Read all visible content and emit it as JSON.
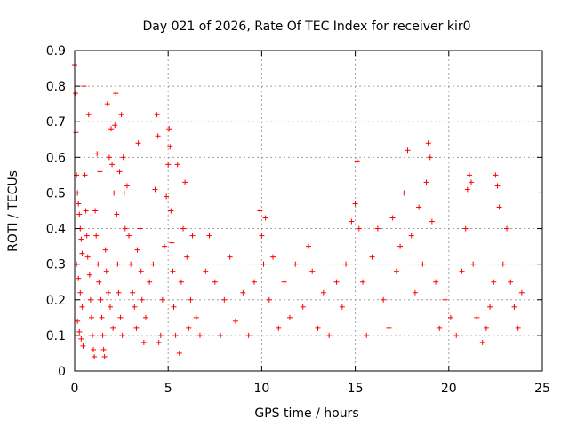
{
  "chart_data": {
    "type": "scatter",
    "title": "Day 021 of 2026, Rate Of TEC Index for receiver kir0",
    "xlabel": "GPS time / hours",
    "ylabel": "ROTI / TECUs",
    "xlim": [
      0,
      25
    ],
    "ylim": [
      0,
      0.9
    ],
    "xticks": [
      0,
      5,
      10,
      15,
      20,
      25
    ],
    "xtick_labels": [
      "0",
      "5",
      "10",
      "15",
      "20",
      "25"
    ],
    "yticks": [
      0,
      0.1,
      0.2,
      0.3,
      0.4,
      0.5,
      0.6,
      0.7,
      0.8,
      0.9
    ],
    "ytick_labels": [
      "0",
      "0.1",
      "0.2",
      "0.3",
      "0.4",
      "0.5",
      "0.6",
      "0.7",
      "0.8",
      "0.9"
    ],
    "grid": true,
    "legend": "none",
    "marker": "plus",
    "color": "#ff0000",
    "series": [
      {
        "points": [
          [
            0.0,
            0.86
          ],
          [
            0.05,
            0.78
          ],
          [
            0.07,
            0.67
          ],
          [
            0.1,
            0.55
          ],
          [
            0.15,
            0.5
          ],
          [
            0.2,
            0.47
          ],
          [
            0.25,
            0.44
          ],
          [
            0.3,
            0.4
          ],
          [
            0.35,
            0.37
          ],
          [
            0.4,
            0.33
          ],
          [
            0.1,
            0.3
          ],
          [
            0.2,
            0.26
          ],
          [
            0.3,
            0.22
          ],
          [
            0.4,
            0.18
          ],
          [
            0.15,
            0.14
          ],
          [
            0.25,
            0.11
          ],
          [
            0.35,
            0.09
          ],
          [
            0.45,
            0.07
          ],
          [
            0.5,
            0.8
          ],
          [
            0.55,
            0.55
          ],
          [
            0.6,
            0.45
          ],
          [
            0.65,
            0.38
          ],
          [
            0.7,
            0.32
          ],
          [
            0.75,
            0.72
          ],
          [
            0.8,
            0.27
          ],
          [
            0.85,
            0.2
          ],
          [
            0.9,
            0.15
          ],
          [
            0.95,
            0.1
          ],
          [
            1.0,
            0.06
          ],
          [
            1.05,
            0.04
          ],
          [
            1.1,
            0.45
          ],
          [
            1.15,
            0.38
          ],
          [
            1.2,
            0.61
          ],
          [
            1.25,
            0.3
          ],
          [
            1.3,
            0.25
          ],
          [
            1.35,
            0.56
          ],
          [
            1.4,
            0.2
          ],
          [
            1.45,
            0.15
          ],
          [
            1.5,
            0.1
          ],
          [
            1.55,
            0.06
          ],
          [
            1.6,
            0.04
          ],
          [
            1.65,
            0.34
          ],
          [
            1.7,
            0.28
          ],
          [
            1.75,
            0.75
          ],
          [
            1.8,
            0.22
          ],
          [
            1.85,
            0.6
          ],
          [
            1.9,
            0.18
          ],
          [
            1.95,
            0.68
          ],
          [
            2.0,
            0.58
          ],
          [
            2.05,
            0.12
          ],
          [
            2.1,
            0.5
          ],
          [
            2.15,
            0.69
          ],
          [
            2.2,
            0.78
          ],
          [
            2.25,
            0.44
          ],
          [
            2.3,
            0.3
          ],
          [
            2.35,
            0.22
          ],
          [
            2.4,
            0.56
          ],
          [
            2.45,
            0.15
          ],
          [
            2.5,
            0.72
          ],
          [
            2.55,
            0.1
          ],
          [
            2.6,
            0.6
          ],
          [
            2.65,
            0.5
          ],
          [
            2.7,
            0.4
          ],
          [
            2.8,
            0.52
          ],
          [
            2.9,
            0.38
          ],
          [
            3.0,
            0.3
          ],
          [
            3.1,
            0.22
          ],
          [
            3.2,
            0.18
          ],
          [
            3.3,
            0.12
          ],
          [
            3.35,
            0.34
          ],
          [
            3.4,
            0.64
          ],
          [
            3.5,
            0.4
          ],
          [
            3.55,
            0.28
          ],
          [
            3.6,
            0.2
          ],
          [
            3.7,
            0.08
          ],
          [
            3.8,
            0.15
          ],
          [
            4.0,
            0.25
          ],
          [
            4.2,
            0.3
          ],
          [
            4.3,
            0.51
          ],
          [
            4.4,
            0.72
          ],
          [
            4.45,
            0.66
          ],
          [
            4.5,
            0.08
          ],
          [
            4.6,
            0.1
          ],
          [
            4.7,
            0.2
          ],
          [
            4.8,
            0.35
          ],
          [
            4.9,
            0.49
          ],
          [
            5.0,
            0.58
          ],
          [
            5.05,
            0.68
          ],
          [
            5.1,
            0.63
          ],
          [
            5.15,
            0.45
          ],
          [
            5.2,
            0.36
          ],
          [
            5.25,
            0.28
          ],
          [
            5.3,
            0.18
          ],
          [
            5.4,
            0.1
          ],
          [
            5.5,
            0.58
          ],
          [
            5.6,
            0.05
          ],
          [
            5.7,
            0.25
          ],
          [
            5.8,
            0.4
          ],
          [
            5.9,
            0.53
          ],
          [
            6.0,
            0.32
          ],
          [
            6.1,
            0.12
          ],
          [
            6.2,
            0.2
          ],
          [
            6.3,
            0.38
          ],
          [
            6.5,
            0.15
          ],
          [
            6.7,
            0.1
          ],
          [
            7.0,
            0.28
          ],
          [
            7.2,
            0.38
          ],
          [
            7.5,
            0.25
          ],
          [
            7.8,
            0.1
          ],
          [
            8.0,
            0.2
          ],
          [
            8.3,
            0.32
          ],
          [
            8.6,
            0.14
          ],
          [
            9.0,
            0.22
          ],
          [
            9.3,
            0.1
          ],
          [
            9.6,
            0.25
          ],
          [
            9.9,
            0.45
          ],
          [
            10.0,
            0.38
          ],
          [
            10.1,
            0.3
          ],
          [
            10.2,
            0.43
          ],
          [
            10.4,
            0.2
          ],
          [
            10.6,
            0.32
          ],
          [
            10.9,
            0.12
          ],
          [
            11.2,
            0.25
          ],
          [
            11.5,
            0.15
          ],
          [
            11.8,
            0.3
          ],
          [
            12.2,
            0.18
          ],
          [
            12.5,
            0.35
          ],
          [
            12.7,
            0.28
          ],
          [
            13.0,
            0.12
          ],
          [
            13.3,
            0.22
          ],
          [
            13.6,
            0.1
          ],
          [
            14.0,
            0.25
          ],
          [
            14.3,
            0.18
          ],
          [
            14.5,
            0.3
          ],
          [
            14.8,
            0.42
          ],
          [
            15.0,
            0.47
          ],
          [
            15.1,
            0.59
          ],
          [
            15.2,
            0.4
          ],
          [
            15.4,
            0.25
          ],
          [
            15.6,
            0.1
          ],
          [
            15.9,
            0.32
          ],
          [
            16.2,
            0.4
          ],
          [
            16.5,
            0.2
          ],
          [
            16.8,
            0.12
          ],
          [
            17.0,
            0.43
          ],
          [
            17.2,
            0.28
          ],
          [
            17.4,
            0.35
          ],
          [
            17.6,
            0.5
          ],
          [
            17.8,
            0.62
          ],
          [
            18.0,
            0.38
          ],
          [
            18.2,
            0.22
          ],
          [
            18.4,
            0.46
          ],
          [
            18.6,
            0.3
          ],
          [
            18.8,
            0.53
          ],
          [
            18.9,
            0.64
          ],
          [
            19.0,
            0.6
          ],
          [
            19.1,
            0.42
          ],
          [
            19.3,
            0.25
          ],
          [
            19.5,
            0.12
          ],
          [
            19.8,
            0.2
          ],
          [
            20.1,
            0.15
          ],
          [
            20.4,
            0.1
          ],
          [
            20.7,
            0.28
          ],
          [
            20.9,
            0.4
          ],
          [
            21.0,
            0.51
          ],
          [
            21.1,
            0.55
          ],
          [
            21.2,
            0.53
          ],
          [
            21.3,
            0.3
          ],
          [
            21.5,
            0.15
          ],
          [
            21.8,
            0.08
          ],
          [
            22.0,
            0.12
          ],
          [
            22.2,
            0.18
          ],
          [
            22.4,
            0.25
          ],
          [
            22.5,
            0.55
          ],
          [
            22.6,
            0.52
          ],
          [
            22.7,
            0.46
          ],
          [
            22.9,
            0.3
          ],
          [
            23.1,
            0.4
          ],
          [
            23.3,
            0.25
          ],
          [
            23.5,
            0.18
          ],
          [
            23.7,
            0.12
          ],
          [
            23.9,
            0.22
          ]
        ]
      }
    ]
  }
}
